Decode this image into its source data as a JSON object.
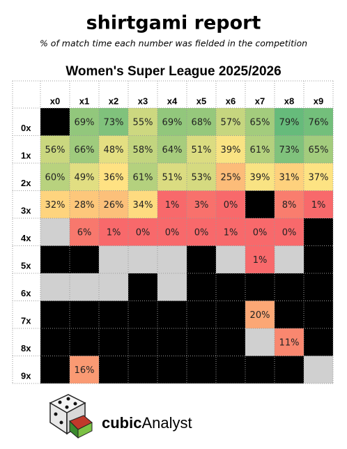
{
  "header": {
    "title": "shirtgami report",
    "subtitle": "% of match time each number was fielded in the competition"
  },
  "table": {
    "title": "Women's Super League 2025/2026",
    "columns": [
      "x0",
      "x1",
      "x2",
      "x3",
      "x4",
      "x5",
      "x6",
      "x7",
      "x8",
      "x9"
    ],
    "rows": [
      {
        "label": "0x",
        "cells": [
          null,
          "69%",
          "73%",
          "55%",
          "69%",
          "68%",
          "57%",
          "65%",
          "79%",
          "76%"
        ],
        "fills": [
          "#000000",
          "#92c77c",
          "#80c27c",
          "#cdd880",
          "#92c77c",
          "#96c87c",
          "#c6d67f",
          "#a3cc7d",
          "#66bb7b",
          "#73bf7b"
        ]
      },
      {
        "label": "1x",
        "cells": [
          "56%",
          "66%",
          "48%",
          "58%",
          "64%",
          "51%",
          "39%",
          "61%",
          "73%",
          "65%"
        ],
        "fills": [
          "#cad77f",
          "#9fcb7d",
          "#e4df82",
          "#c2d57f",
          "#a7cd7d",
          "#dbdc81",
          "#f9e383",
          "#b4d17e",
          "#80c27c",
          "#a3cc7d"
        ]
      },
      {
        "label": "2x",
        "cells": [
          "60%",
          "49%",
          "36%",
          "61%",
          "51%",
          "53%",
          "25%",
          "39%",
          "31%",
          "37%"
        ],
        "fills": [
          "#b8d27e",
          "#e1de82",
          "#ffe283",
          "#b4d17e",
          "#dbdc81",
          "#d5da80",
          "#fcbc79",
          "#f9e383",
          "#fed17d",
          "#fde383"
        ]
      },
      {
        "label": "3x",
        "cells": [
          "32%",
          "28%",
          "26%",
          "34%",
          "1%",
          "3%",
          "0%",
          null,
          "8%",
          "1%"
        ],
        "fills": [
          "#fed47e",
          "#fdc77b",
          "#fcc07a",
          "#fedb80",
          "#f8696b",
          "#f8716c",
          "#f8696b",
          "#000000",
          "#f97d6e",
          "#f8696b"
        ]
      },
      {
        "label": "4x",
        "cells": [
          null,
          "6%",
          "1%",
          "0%",
          "0%",
          "0%",
          "1%",
          "0%",
          "0%",
          null
        ],
        "fills": [
          "#d0d0d0",
          "#f8786d",
          "#f8696b",
          "#f8696b",
          "#f8696b",
          "#f8696b",
          "#f8696b",
          "#f8696b",
          "#f8696b",
          "#000000"
        ]
      },
      {
        "label": "5x",
        "cells": [
          null,
          null,
          null,
          null,
          null,
          null,
          null,
          "1%",
          null,
          null
        ],
        "fills": [
          "#000000",
          "#000000",
          "#d0d0d0",
          "#d0d0d0",
          "#d0d0d0",
          "#000000",
          "#d0d0d0",
          "#f8696b",
          "#d0d0d0",
          "#000000"
        ]
      },
      {
        "label": "6x",
        "cells": [
          null,
          null,
          null,
          null,
          null,
          null,
          null,
          null,
          null,
          null
        ],
        "fills": [
          "#d0d0d0",
          "#d0d0d0",
          "#d0d0d0",
          "#000000",
          "#d0d0d0",
          "#000000",
          "#000000",
          "#000000",
          "#000000",
          "#000000"
        ]
      },
      {
        "label": "7x",
        "cells": [
          null,
          null,
          null,
          null,
          null,
          null,
          null,
          "20%",
          null,
          null
        ],
        "fills": [
          "#000000",
          "#000000",
          "#000000",
          "#000000",
          "#000000",
          "#000000",
          "#000000",
          "#fba775",
          "#000000",
          "#000000"
        ]
      },
      {
        "label": "8x",
        "cells": [
          null,
          null,
          null,
          null,
          null,
          null,
          null,
          null,
          "11%",
          null
        ],
        "fills": [
          "#000000",
          "#000000",
          "#000000",
          "#000000",
          "#000000",
          "#000000",
          "#000000",
          "#d0d0d0",
          "#f9876f",
          "#000000"
        ]
      },
      {
        "label": "9x",
        "cells": [
          null,
          "16%",
          null,
          null,
          null,
          null,
          null,
          null,
          null,
          null
        ],
        "fills": [
          "#000000",
          "#fa9a73",
          "#000000",
          "#000000",
          "#000000",
          "#000000",
          "#000000",
          "#000000",
          "#000000",
          "#d0d0d0"
        ]
      }
    ]
  },
  "footer": {
    "brand_bold": "cubic",
    "brand": "Analyst"
  }
}
